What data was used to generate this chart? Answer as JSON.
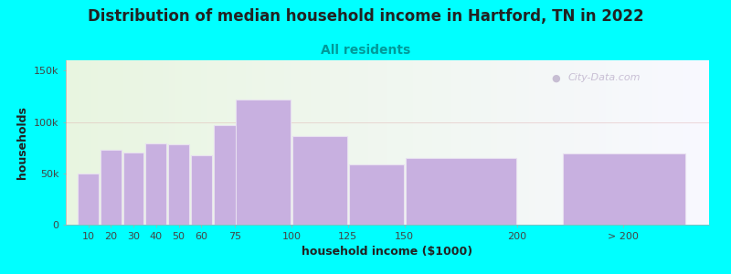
{
  "title": "Distribution of median household income in Hartford, TN in 2022",
  "subtitle": "All residents",
  "xlabel": "household income ($1000)",
  "ylabel": "households",
  "background_color": "#00FFFF",
  "bar_color": "#c8b0e0",
  "bar_edge_color": "#e8e0f0",
  "categories": [
    "10",
    "20",
    "30",
    "40",
    "50",
    "60",
    "75",
    "100",
    "125",
    "150",
    "200",
    "> 200"
  ],
  "values": [
    50000,
    73000,
    70000,
    79000,
    78000,
    68000,
    97000,
    122000,
    86000,
    59000,
    65000,
    69000
  ],
  "bar_widths": [
    10,
    10,
    10,
    10,
    10,
    10,
    15,
    25,
    25,
    25,
    50,
    55
  ],
  "bar_lefts": [
    5,
    15,
    25,
    35,
    45,
    55,
    65,
    75,
    100,
    125,
    150,
    220
  ],
  "xlim": [
    0,
    285
  ],
  "ylim": [
    0,
    160000
  ],
  "yticks": [
    0,
    50000,
    100000,
    150000
  ],
  "ytick_labels": [
    "0",
    "50k",
    "100k",
    "150k"
  ],
  "xtick_positions": [
    10,
    20,
    30,
    40,
    50,
    60,
    75,
    100,
    125,
    150,
    200,
    247
  ],
  "xtick_labels": [
    "10",
    "20",
    "30",
    "40",
    "50",
    "60",
    "75",
    "100",
    "125",
    "150",
    "200",
    "> 200"
  ],
  "watermark": "City-Data.com",
  "title_fontsize": 12,
  "subtitle_fontsize": 10,
  "label_fontsize": 9,
  "tick_fontsize": 8,
  "bg_gradient_left": "#e8f5e0",
  "bg_gradient_mid": "#f0f5e8",
  "bg_gradient_right": "#f5f0f8"
}
